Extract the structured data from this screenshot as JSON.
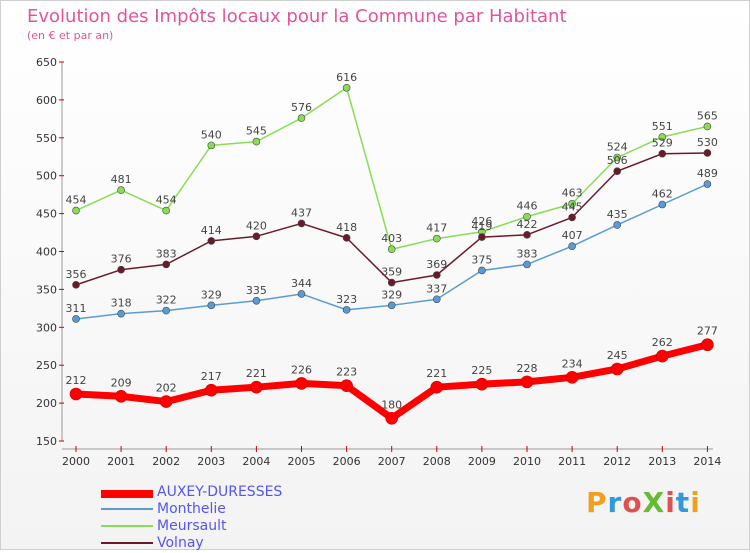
{
  "title": "Evolution des Impôts locaux pour la Commune par Habitant",
  "subtitle": "(en € et par an)",
  "logo": {
    "text": "ProXiti",
    "colors": [
      "#f0a020",
      "#3399dd",
      "#e05050",
      "#66bb33",
      "#e05050",
      "#3399dd",
      "#f0a020"
    ]
  },
  "chart_data": {
    "type": "line",
    "title": "Evolution des Impôts locaux pour la Commune par Habitant",
    "subtitle": "(en € et par an)",
    "x": [
      2000,
      2001,
      2002,
      2003,
      2004,
      2005,
      2006,
      2007,
      2008,
      2009,
      2010,
      2011,
      2012,
      2013,
      2014
    ],
    "ylim": [
      150,
      650
    ],
    "yticks": [
      150,
      200,
      250,
      300,
      350,
      400,
      450,
      500,
      550,
      600,
      650
    ],
    "grid": false,
    "legend": "bottom-left",
    "series": [
      {
        "name": "AUXEY-DURESSES",
        "color": "#ff0000",
        "values": [
          212,
          209,
          202,
          217,
          221,
          226,
          223,
          180,
          221,
          225,
          228,
          234,
          245,
          262,
          277
        ]
      },
      {
        "name": "Monthelie",
        "color": "#5b9bd5",
        "values": [
          311,
          318,
          322,
          329,
          335,
          344,
          323,
          329,
          337,
          375,
          383,
          407,
          435,
          462,
          489
        ]
      },
      {
        "name": "Meursault",
        "color": "#88dd55",
        "values": [
          454,
          481,
          454,
          540,
          545,
          576,
          616,
          403,
          417,
          426,
          446,
          463,
          524,
          551,
          565
        ]
      },
      {
        "name": "Volnay",
        "color": "#6b1a2a",
        "values": [
          356,
          376,
          383,
          414,
          420,
          437,
          418,
          359,
          369,
          419,
          422,
          445,
          506,
          529,
          530
        ]
      }
    ]
  }
}
